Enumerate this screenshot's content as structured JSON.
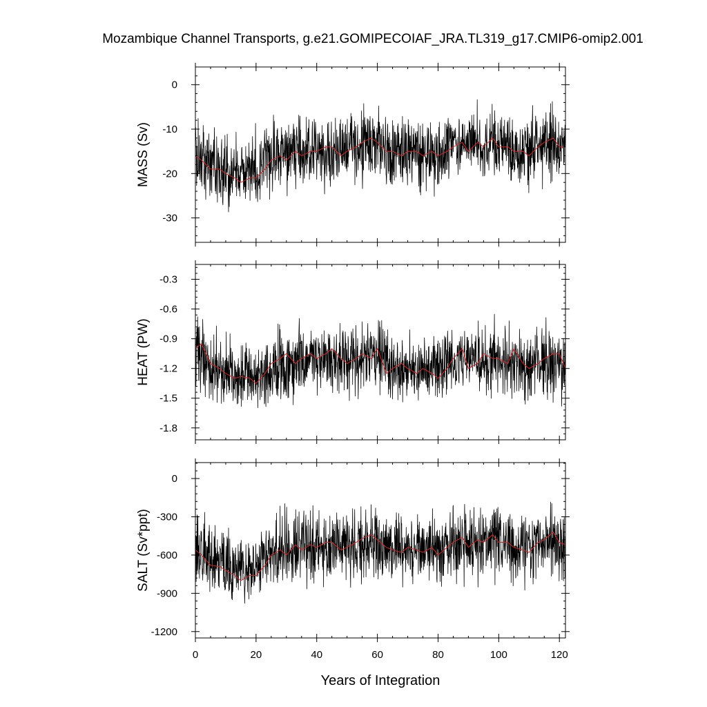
{
  "chart_data": [
    {
      "type": "line",
      "panel": "top",
      "title": "Mozambique Channel Transports, g.e21.GOMIPECOIAF_JRA.TL319_g17.CMIP6-omip2.001",
      "ylabel": "MASS (Sv)",
      "xlim": [
        0,
        122
      ],
      "ylim": [
        -35.5,
        4
      ],
      "yticks": [
        0,
        -10,
        -20,
        -30
      ],
      "xticks": [
        0,
        20,
        40,
        60,
        80,
        100,
        120
      ],
      "series": [
        {
          "color": "#000000",
          "x": [
            0,
            5,
            10,
            15,
            20,
            25,
            30,
            35,
            40,
            45,
            50,
            55,
            60,
            65,
            70,
            75,
            80,
            85,
            90,
            95,
            100,
            105,
            110,
            115,
            120,
            122
          ],
          "values": [
            -15,
            -18,
            -19,
            -20,
            -19,
            -16,
            -16,
            -15,
            -15,
            -15,
            -14,
            -14,
            -13,
            -15,
            -15,
            -15,
            -16,
            -14,
            -13,
            -14,
            -13,
            -15,
            -15,
            -13,
            -14,
            -14
          ],
          "range": [
            -33,
            3
          ],
          "noise": 6.5
        },
        {
          "color": "#dd2222",
          "x": [
            0,
            2,
            5,
            8,
            10,
            13,
            15,
            18,
            20,
            23,
            25,
            28,
            30,
            33,
            35,
            38,
            40,
            43,
            45,
            48,
            50,
            53,
            55,
            58,
            60,
            63,
            65,
            68,
            70,
            73,
            75,
            78,
            80,
            83,
            85,
            88,
            90,
            93,
            95,
            98,
            100,
            103,
            105,
            108,
            110,
            113,
            115,
            118,
            120,
            122
          ],
          "values": [
            -16,
            -17,
            -19,
            -19,
            -20,
            -21,
            -22,
            -21,
            -21,
            -19,
            -17,
            -16,
            -17,
            -15,
            -16,
            -15,
            -15,
            -14,
            -14,
            -16,
            -15,
            -14,
            -13,
            -12,
            -13,
            -15,
            -15,
            -16,
            -15,
            -15,
            -16,
            -15,
            -16,
            -15,
            -14,
            -13,
            -15,
            -13,
            -14,
            -12,
            -14,
            -14,
            -15,
            -15,
            -16,
            -14,
            -13,
            -12,
            -14,
            -14
          ]
        }
      ]
    },
    {
      "type": "line",
      "panel": "middle",
      "ylabel": "HEAT (PW)",
      "xlim": [
        0,
        122
      ],
      "ylim": [
        -1.92,
        -0.15
      ],
      "yticks": [
        -0.3,
        -0.6,
        -0.9,
        -1.2,
        -1.5,
        -1.8
      ],
      "ytick_labels": [
        "-0.3",
        "-0.6",
        "-0.9",
        "-1.2",
        "-1.5",
        "-1.8"
      ],
      "xticks": [
        0,
        20,
        40,
        60,
        80,
        100,
        120
      ],
      "series": [
        {
          "color": "#000000",
          "x": [
            0,
            5,
            10,
            15,
            20,
            25,
            30,
            35,
            40,
            45,
            50,
            55,
            60,
            65,
            70,
            75,
            80,
            85,
            90,
            95,
            100,
            105,
            110,
            115,
            120,
            122
          ],
          "values": [
            -1.0,
            -1.2,
            -1.25,
            -1.28,
            -1.3,
            -1.2,
            -1.15,
            -1.1,
            -1.12,
            -1.1,
            -1.15,
            -1.1,
            -1.05,
            -1.2,
            -1.2,
            -1.22,
            -1.2,
            -1.12,
            -1.08,
            -1.15,
            -1.1,
            -1.18,
            -1.2,
            -1.1,
            -1.15,
            -1.2
          ],
          "range": [
            -1.9,
            -0.25
          ],
          "noise": 0.28
        },
        {
          "color": "#dd2222",
          "x": [
            0,
            2,
            5,
            8,
            10,
            13,
            15,
            18,
            20,
            23,
            25,
            28,
            30,
            33,
            35,
            38,
            40,
            43,
            45,
            48,
            50,
            53,
            55,
            58,
            60,
            63,
            65,
            68,
            70,
            73,
            75,
            78,
            80,
            83,
            85,
            88,
            90,
            93,
            95,
            98,
            100,
            103,
            105,
            108,
            110,
            113,
            115,
            118,
            120,
            122
          ],
          "values": [
            -1.0,
            -0.95,
            -1.15,
            -1.2,
            -1.25,
            -1.3,
            -1.28,
            -1.3,
            -1.35,
            -1.25,
            -1.15,
            -1.1,
            -1.05,
            -1.15,
            -1.1,
            -1.05,
            -1.1,
            -1.05,
            -1.0,
            -1.1,
            -1.15,
            -1.1,
            -1.05,
            -1.1,
            -1.0,
            -1.25,
            -1.2,
            -1.15,
            -1.2,
            -1.25,
            -1.2,
            -1.25,
            -1.3,
            -1.2,
            -1.1,
            -1.0,
            -1.2,
            -1.15,
            -1.05,
            -1.1,
            -1.1,
            -1.15,
            -1.0,
            -1.15,
            -1.2,
            -1.15,
            -1.1,
            -1.05,
            -1.05,
            -1.2
          ]
        }
      ]
    },
    {
      "type": "line",
      "panel": "bottom",
      "ylabel": "SALT (Sv*ppt)",
      "xlim": [
        0,
        122
      ],
      "ylim": [
        -1250,
        125
      ],
      "yticks": [
        0,
        -300,
        -600,
        -900,
        -1200
      ],
      "xticks": [
        0,
        20,
        40,
        60,
        80,
        100,
        120
      ],
      "xlabel": "Years of Integration",
      "series": [
        {
          "color": "#000000",
          "x": [
            0,
            5,
            10,
            15,
            20,
            25,
            30,
            35,
            40,
            45,
            50,
            55,
            60,
            65,
            70,
            75,
            80,
            85,
            90,
            95,
            100,
            105,
            110,
            115,
            120,
            122
          ],
          "values": [
            -520,
            -640,
            -700,
            -720,
            -700,
            -580,
            -560,
            -540,
            -520,
            -540,
            -500,
            -500,
            -470,
            -540,
            -540,
            -560,
            -580,
            -520,
            -480,
            -500,
            -480,
            -540,
            -540,
            -480,
            -500,
            -500
          ],
          "range": [
            -1230,
            110
          ],
          "noise": 230
        },
        {
          "color": "#dd2222",
          "x": [
            0,
            2,
            5,
            8,
            10,
            13,
            15,
            18,
            20,
            23,
            25,
            28,
            30,
            33,
            35,
            38,
            40,
            43,
            45,
            48,
            50,
            53,
            55,
            58,
            60,
            63,
            65,
            68,
            70,
            73,
            75,
            78,
            80,
            83,
            85,
            88,
            90,
            93,
            95,
            98,
            100,
            103,
            105,
            108,
            110,
            113,
            115,
            118,
            120,
            122
          ],
          "values": [
            -560,
            -600,
            -680,
            -690,
            -720,
            -760,
            -800,
            -760,
            -760,
            -680,
            -600,
            -560,
            -600,
            -520,
            -560,
            -520,
            -540,
            -500,
            -500,
            -560,
            -540,
            -500,
            -470,
            -440,
            -480,
            -540,
            -560,
            -580,
            -540,
            -560,
            -580,
            -540,
            -600,
            -540,
            -500,
            -460,
            -540,
            -480,
            -500,
            -440,
            -500,
            -500,
            -540,
            -560,
            -580,
            -500,
            -480,
            -420,
            -500,
            -520
          ]
        }
      ]
    }
  ]
}
